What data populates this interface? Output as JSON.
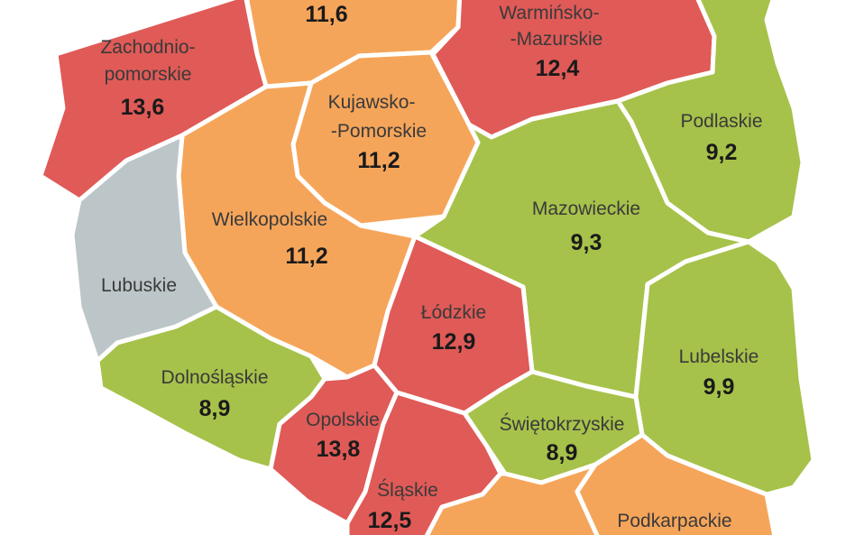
{
  "legend_colors": {
    "high": "#e05a57",
    "medium": "#f5a55a",
    "low": "#a6c24a",
    "no_data": "#bcc6c8"
  },
  "regions": [
    {
      "key": "pomorskie",
      "name": "",
      "value": "11,6",
      "level": "medium"
    },
    {
      "key": "zachodniopomorskie",
      "name_line1": "Zachodnio-",
      "name_line2": "pomorskie",
      "value": "13,6",
      "level": "high"
    },
    {
      "key": "warminsko",
      "name_line1": "Warmińsko-",
      "name_line2": "-Mazurskie",
      "value": "12,4",
      "level": "high"
    },
    {
      "key": "kujawsko",
      "name_line1": "Kujawsko-",
      "name_line2": "-Pomorskie",
      "value": "11,2",
      "level": "medium"
    },
    {
      "key": "podlaskie",
      "name": "Podlaskie",
      "value": "9,2",
      "level": "low"
    },
    {
      "key": "wielkopolskie",
      "name": "Wielkopolskie",
      "value": "11,2",
      "level": "medium"
    },
    {
      "key": "mazowieckie",
      "name": "Mazowieckie",
      "value": "9,3",
      "level": "low"
    },
    {
      "key": "lubuskie",
      "name": "Lubuskie",
      "value": "",
      "level": "no_data"
    },
    {
      "key": "lodzkie",
      "name": "Łódzkie",
      "value": "12,9",
      "level": "high"
    },
    {
      "key": "lubelskie",
      "name": "Lubelskie",
      "value": "9,9",
      "level": "low"
    },
    {
      "key": "dolnoslaskie",
      "name": "Dolnośląskie",
      "value": "8,9",
      "level": "low"
    },
    {
      "key": "opolskie",
      "name": "Opolskie",
      "value": "13,8",
      "level": "high"
    },
    {
      "key": "swietokrzyskie",
      "name": "Świętokrzyskie",
      "value": "8,9",
      "level": "low"
    },
    {
      "key": "slaskie",
      "name": "Śląskie",
      "value": "12,5",
      "level": "high"
    },
    {
      "key": "malopolskie",
      "name": "",
      "value": "",
      "level": "medium"
    },
    {
      "key": "podkarpackie",
      "name": "Podkarpackie",
      "value": "",
      "level": "medium"
    }
  ]
}
